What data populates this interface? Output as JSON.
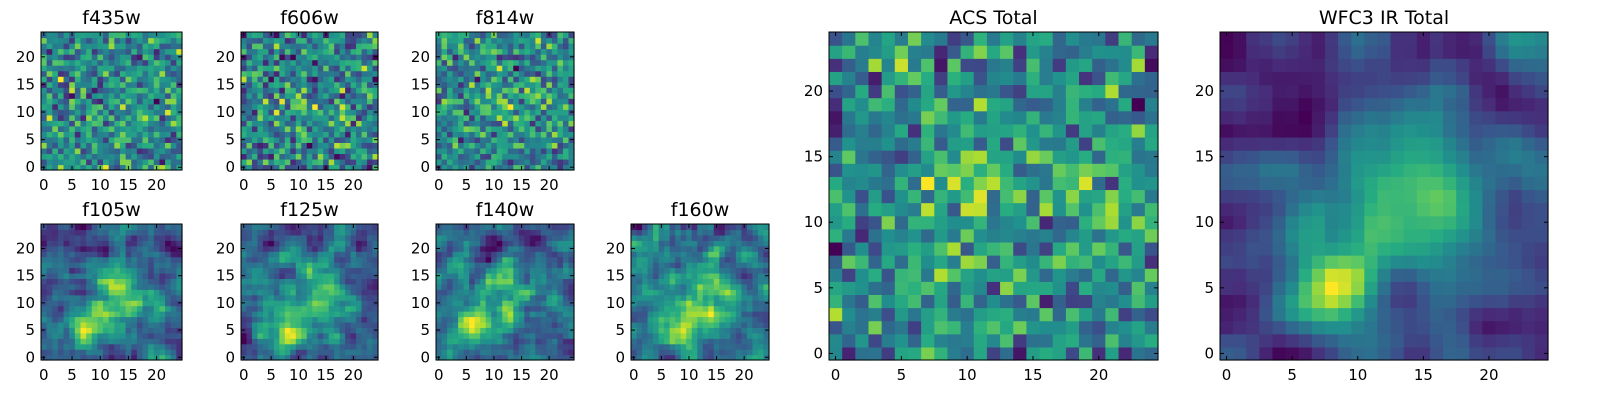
{
  "chart_data": [
    {
      "type": "heatmap",
      "title": "f435w",
      "grid_size": 25,
      "x_ticks": [
        "0",
        "5",
        "10",
        "15",
        "20"
      ],
      "y_ticks": [
        "0",
        "5",
        "10",
        "15",
        "20"
      ],
      "xlim": [
        -0.5,
        24.5
      ],
      "ylim": [
        -0.5,
        24.5
      ],
      "colormap": "viridis",
      "character": "uniform noise, no clear source",
      "seed": 11,
      "smoothing": 0,
      "blobs": []
    },
    {
      "type": "heatmap",
      "title": "f606w",
      "grid_size": 25,
      "x_ticks": [
        "0",
        "5",
        "10",
        "15",
        "20"
      ],
      "y_ticks": [
        "0",
        "5",
        "10",
        "15",
        "20"
      ],
      "xlim": [
        -0.5,
        24.5
      ],
      "ylim": [
        -0.5,
        24.5
      ],
      "colormap": "viridis",
      "character": "noisy with faint central emission",
      "seed": 23,
      "smoothing": 0,
      "blobs": [
        {
          "x": 10,
          "y": 12,
          "sigma": 3.0,
          "amp": 0.22
        },
        {
          "x": 19,
          "y": 12,
          "sigma": 2.5,
          "amp": 0.18
        }
      ]
    },
    {
      "type": "heatmap",
      "title": "f814w",
      "grid_size": 25,
      "x_ticks": [
        "0",
        "5",
        "10",
        "15",
        "20"
      ],
      "y_ticks": [
        "0",
        "5",
        "10",
        "15",
        "20"
      ],
      "xlim": [
        -0.5,
        24.5
      ],
      "ylim": [
        -0.5,
        24.5
      ],
      "colormap": "viridis",
      "character": "noisy with faint central emission",
      "seed": 37,
      "smoothing": 0,
      "blobs": [
        {
          "x": 10,
          "y": 11,
          "sigma": 3.0,
          "amp": 0.2
        },
        {
          "x": 18,
          "y": 12,
          "sigma": 2.5,
          "amp": 0.16
        }
      ]
    },
    {
      "type": "heatmap",
      "title": "f105w",
      "grid_size": 25,
      "x_ticks": [
        "0",
        "5",
        "10",
        "15",
        "20"
      ],
      "y_ticks": [
        "0",
        "5",
        "10",
        "15",
        "20"
      ],
      "xlim": [
        -0.5,
        24.5
      ],
      "ylim": [
        -0.5,
        24.5
      ],
      "colormap": "viridis",
      "character": "extended emission, brightest near x 8 y 5",
      "seed": 41,
      "smoothing": 1,
      "blobs": [
        {
          "x": 8,
          "y": 6,
          "sigma": 2.5,
          "amp": 0.4
        },
        {
          "x": 13,
          "y": 12,
          "sigma": 4.0,
          "amp": 0.3
        }
      ]
    },
    {
      "type": "heatmap",
      "title": "f125w",
      "grid_size": 25,
      "x_ticks": [
        "0",
        "5",
        "10",
        "15",
        "20"
      ],
      "y_ticks": [
        "0",
        "5",
        "10",
        "15",
        "20"
      ],
      "xlim": [
        -0.5,
        24.5
      ],
      "ylim": [
        -0.5,
        24.5
      ],
      "colormap": "viridis",
      "character": "extended emission, brightest near x 8 y 5",
      "seed": 53,
      "smoothing": 1,
      "blobs": [
        {
          "x": 8,
          "y": 5,
          "sigma": 2.5,
          "amp": 0.4
        },
        {
          "x": 13,
          "y": 12,
          "sigma": 4.0,
          "amp": 0.3
        }
      ]
    },
    {
      "type": "heatmap",
      "title": "f140w",
      "grid_size": 25,
      "x_ticks": [
        "0",
        "5",
        "10",
        "15",
        "20"
      ],
      "y_ticks": [
        "0",
        "5",
        "10",
        "15",
        "20"
      ],
      "xlim": [
        -0.5,
        24.5
      ],
      "ylim": [
        -0.5,
        24.5
      ],
      "colormap": "viridis",
      "character": "extended emission, brightest near x 5 y 5",
      "seed": 67,
      "smoothing": 1,
      "blobs": [
        {
          "x": 6,
          "y": 5,
          "sigma": 2.5,
          "amp": 0.45
        },
        {
          "x": 12,
          "y": 12,
          "sigma": 4.0,
          "amp": 0.35
        }
      ]
    },
    {
      "type": "heatmap",
      "title": "f160w",
      "grid_size": 25,
      "x_ticks": [
        "0",
        "5",
        "10",
        "15",
        "20"
      ],
      "y_ticks": [
        "0",
        "5",
        "10",
        "15",
        "20"
      ],
      "xlim": [
        -0.5,
        24.5
      ],
      "ylim": [
        -0.5,
        24.5
      ],
      "colormap": "viridis",
      "character": "extended emission, brightest near x 8 y 5",
      "seed": 79,
      "smoothing": 1,
      "blobs": [
        {
          "x": 8,
          "y": 5,
          "sigma": 2.5,
          "amp": 0.45
        },
        {
          "x": 13,
          "y": 12,
          "sigma": 4.0,
          "amp": 0.35
        }
      ]
    },
    {
      "type": "heatmap",
      "title": "ACS Total",
      "grid_size": 25,
      "x_ticks": [
        "0",
        "5",
        "10",
        "15",
        "20"
      ],
      "y_ticks": [
        "0",
        "5",
        "10",
        "15",
        "20"
      ],
      "xlim": [
        -0.5,
        24.5
      ],
      "ylim": [
        -0.5,
        24.5
      ],
      "colormap": "viridis",
      "character": "blocky, bright near x 10 y 12 and x 20 y 12",
      "seed": 97,
      "smoothing": 0,
      "blobs": [
        {
          "x": 10,
          "y": 12,
          "sigma": 3.0,
          "amp": 0.35
        },
        {
          "x": 20,
          "y": 12,
          "sigma": 2.5,
          "amp": 0.3
        },
        {
          "x": 10,
          "y": 5,
          "sigma": 2.5,
          "amp": 0.15
        }
      ]
    },
    {
      "type": "heatmap",
      "title": "WFC3 IR Total",
      "grid_size": 25,
      "x_ticks": [
        "0",
        "5",
        "10",
        "15",
        "20"
      ],
      "y_ticks": [
        "0",
        "5",
        "10",
        "15",
        "20"
      ],
      "xlim": [
        -0.5,
        24.5
      ],
      "ylim": [
        -0.5,
        24.5
      ],
      "colormap": "viridis",
      "character": "smooth, brightest near x 8 y 5, extended to x 18 y 13",
      "seed": 113,
      "smoothing": 2,
      "blobs": [
        {
          "x": 8,
          "y": 5,
          "sigma": 2.5,
          "amp": 0.5
        },
        {
          "x": 14,
          "y": 12,
          "sigma": 5.0,
          "amp": 0.4
        }
      ]
    }
  ]
}
